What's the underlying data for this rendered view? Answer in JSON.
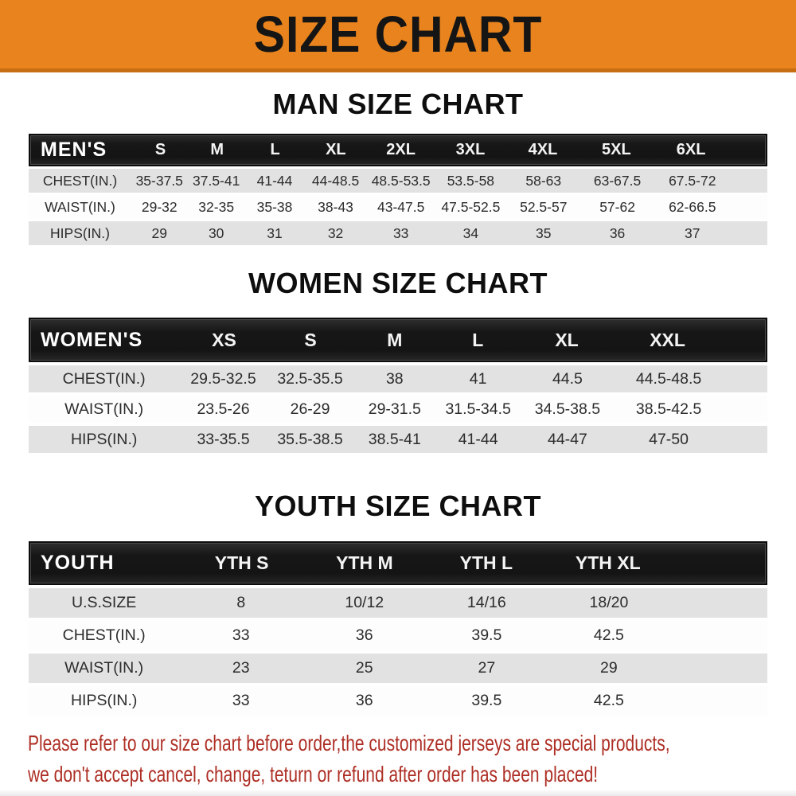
{
  "banner": {
    "title": "SIZE CHART",
    "bg_color": "#E8831D",
    "text_color": "#151515"
  },
  "colors": {
    "table_header_bg": "#1B1B1B",
    "table_header_text": "#FFFFFF",
    "shaded_row_bg": "#E2E2E2",
    "footer_text": "#AD2E24"
  },
  "chart_data": [
    {
      "type": "table",
      "title": "MAN SIZE CHART",
      "header_label": "MEN'S",
      "columns": [
        "S",
        "M",
        "L",
        "XL",
        "2XL",
        "3XL",
        "4XL",
        "5XL",
        "6XL"
      ],
      "rows": [
        {
          "label": "CHEST(IN.)",
          "values": [
            "35-37.5",
            "37.5-41",
            "41-44",
            "44-48.5",
            "48.5-53.5",
            "53.5-58",
            "58-63",
            "63-67.5",
            "67.5-72"
          ]
        },
        {
          "label": "WAIST(IN.)",
          "values": [
            "29-32",
            "32-35",
            "35-38",
            "38-43",
            "43-47.5",
            "47.5-52.5",
            "52.5-57",
            "57-62",
            "62-66.5"
          ]
        },
        {
          "label": "HIPS(IN.)",
          "values": [
            "29",
            "30",
            "31",
            "32",
            "33",
            "34",
            "35",
            "36",
            "37"
          ]
        }
      ]
    },
    {
      "type": "table",
      "title": "WOMEN SIZE CHART",
      "header_label": "WOMEN'S",
      "columns": [
        "XS",
        "S",
        "M",
        "L",
        "XL",
        "XXL"
      ],
      "rows": [
        {
          "label": "CHEST(IN.)",
          "values": [
            "29.5-32.5",
            "32.5-35.5",
            "38",
            "41",
            "44.5",
            "44.5-48.5"
          ]
        },
        {
          "label": "WAIST(IN.)",
          "values": [
            "23.5-26",
            "26-29",
            "29-31.5",
            "31.5-34.5",
            "34.5-38.5",
            "38.5-42.5"
          ]
        },
        {
          "label": "HIPS(IN.)",
          "values": [
            "33-35.5",
            "35.5-38.5",
            "38.5-41",
            "41-44",
            "44-47",
            "47-50"
          ]
        }
      ]
    },
    {
      "type": "table",
      "title": "YOUTH SIZE CHART",
      "header_label": "YOUTH",
      "columns": [
        "YTH S",
        "YTH M",
        "YTH L",
        "YTH XL"
      ],
      "rows": [
        {
          "label": "U.S.SIZE",
          "values": [
            "8",
            "10/12",
            "14/16",
            "18/20"
          ]
        },
        {
          "label": "CHEST(IN.)",
          "values": [
            "33",
            "36",
            "39.5",
            "42.5"
          ]
        },
        {
          "label": "WAIST(IN.)",
          "values": [
            "23",
            "25",
            "27",
            "29"
          ]
        },
        {
          "label": "HIPS(IN.)",
          "values": [
            "33",
            "36",
            "39.5",
            "42.5"
          ]
        }
      ]
    }
  ],
  "footer": {
    "line1": "Please refer to our size chart before order,the customized jerseys are special products,",
    "line2": "we don't accept cancel, change, teturn or refund after order has been placed!"
  }
}
